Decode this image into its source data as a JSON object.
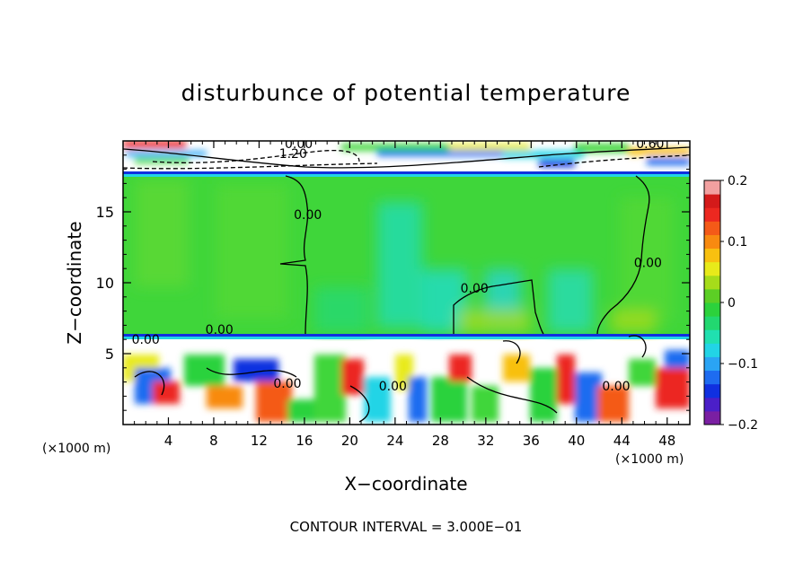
{
  "chart_data": {
    "type": "heatmap",
    "title": "disturbunce of potential temperature",
    "xlabel": "X−coordinate",
    "ylabel": "Z−coordinate",
    "x_unit": "(×1000 m)",
    "x_unit_right": "(×1000 m)",
    "footer": "CONTOUR INTERVAL = 3.000E−01",
    "xlim": [
      0,
      50
    ],
    "ylim": [
      0,
      20
    ],
    "x_ticks": [
      4,
      8,
      12,
      16,
      20,
      24,
      28,
      32,
      36,
      40,
      44,
      48
    ],
    "y_ticks": [
      5,
      10,
      15
    ],
    "colorbar": {
      "min": -0.2,
      "max": 0.2,
      "ticks": [
        0.2,
        0.1,
        0,
        -0.1,
        -0.2
      ],
      "tick_labels": [
        "0.2",
        "0.1",
        "0",
        "−0.1",
        "−0.2"
      ],
      "colors": [
        "#7a1fa2",
        "#4b1fc8",
        "#1030e0",
        "#1e6cf0",
        "#2aa4f4",
        "#22d4e6",
        "#20e0b0",
        "#22d870",
        "#2cd23c",
        "#5ccf25",
        "#a6dc1a",
        "#e8ea1a",
        "#f8c010",
        "#f88a10",
        "#f45a18",
        "#ec2820",
        "#d41a1a",
        "#f2a0a0"
      ]
    },
    "contour_labels": [
      {
        "text": "0.00",
        "x": 15.5,
        "y": 19.5
      },
      {
        "text": "1.20",
        "x": 15.0,
        "y": 18.8
      },
      {
        "text": "0.60",
        "x": 46.5,
        "y": 19.5
      },
      {
        "text": "0.00",
        "x": 16.3,
        "y": 14.5
      },
      {
        "text": "0.00",
        "x": 31.0,
        "y": 9.3
      },
      {
        "text": "0.00",
        "x": 46.3,
        "y": 11.1
      },
      {
        "text": "0.00",
        "x": 8.5,
        "y": 6.4
      },
      {
        "text": "0.00",
        "x": 2.0,
        "y": 5.7
      },
      {
        "text": "0.00",
        "x": 14.5,
        "y": 2.6
      },
      {
        "text": "0.00",
        "x": 23.8,
        "y": 2.4
      },
      {
        "text": "0.00",
        "x": 43.5,
        "y": 2.4
      }
    ]
  }
}
